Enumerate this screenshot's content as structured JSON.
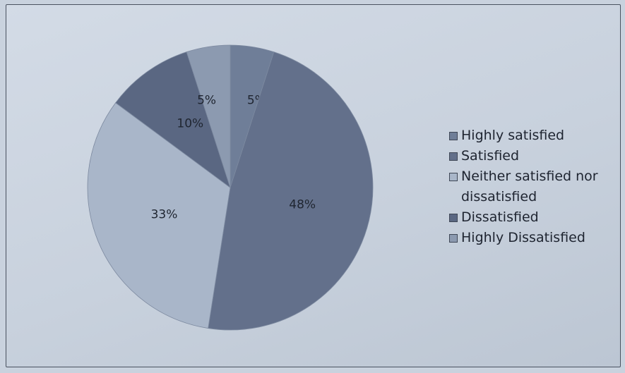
{
  "chart_data": {
    "type": "pie",
    "title": "",
    "slices": [
      {
        "label": "Highly satisfied",
        "value": 5,
        "display": "5%",
        "color": "#6f7e98"
      },
      {
        "label": "Satisfied",
        "value": 48,
        "display": "48%",
        "color": "#63708b"
      },
      {
        "label": "Neither satisfied nor dissatisfied",
        "value": 33,
        "display": "33%",
        "color": "#a9b6c9"
      },
      {
        "label": "Dissatisfied",
        "value": 10,
        "display": "10%",
        "color": "#5a6782"
      },
      {
        "label": "Highly Dissatisfied",
        "value": 5,
        "display": "5%",
        "color": "#8c9ab0"
      }
    ],
    "legend_position": "right"
  }
}
